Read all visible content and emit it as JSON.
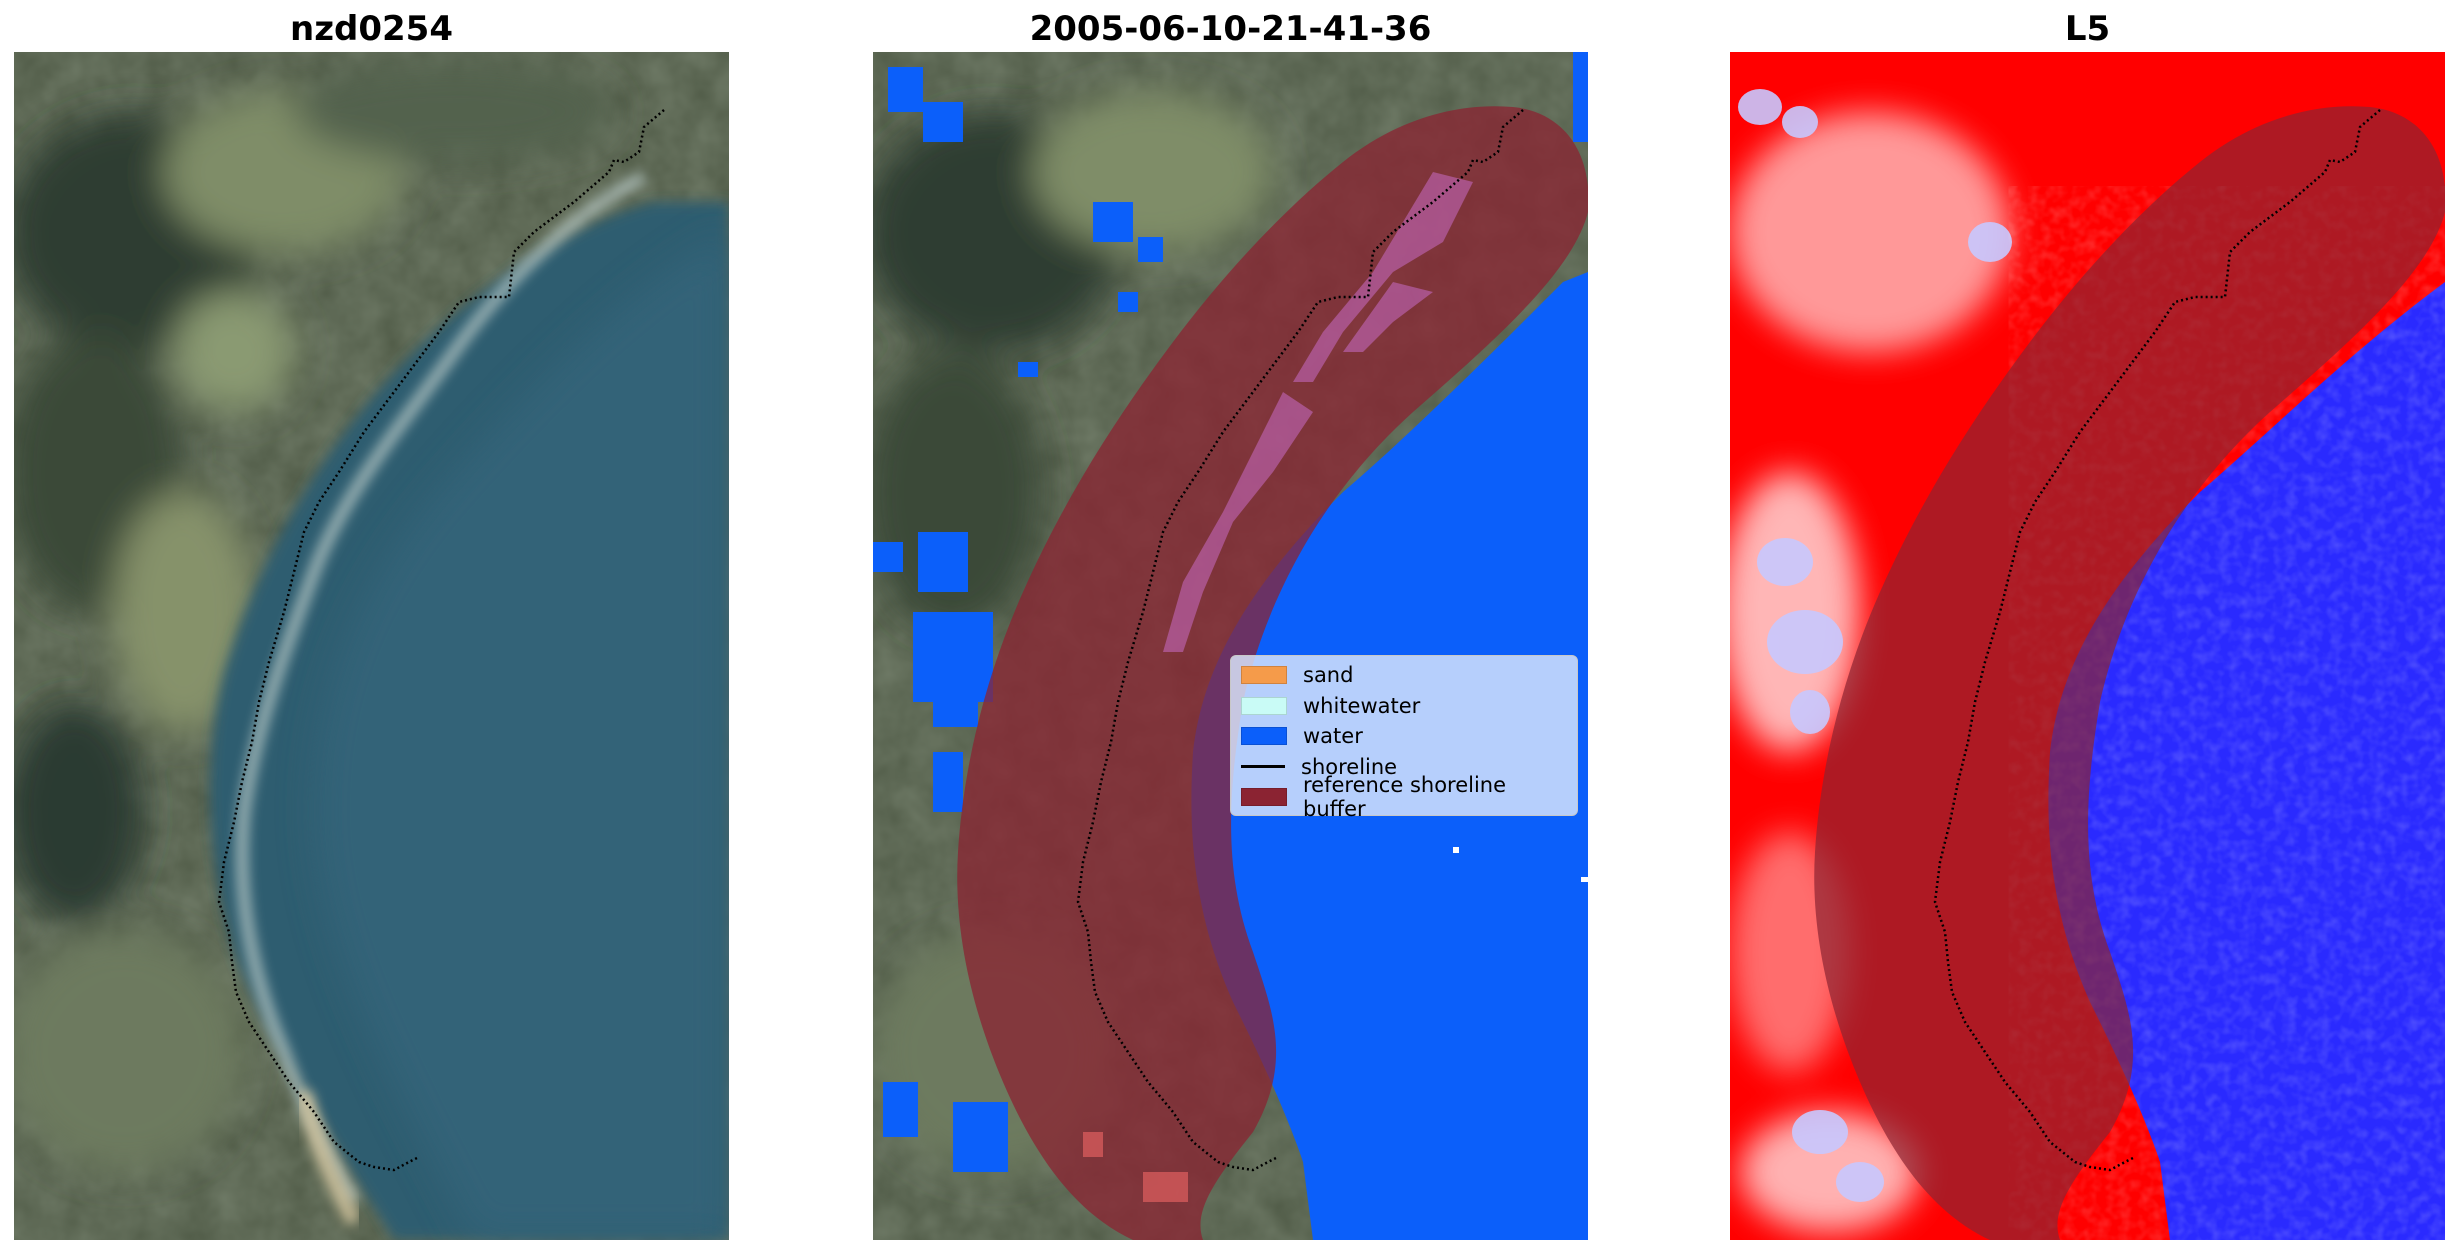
{
  "panels": [
    {
      "title": "nzd0254",
      "kind": "rgb-satellite"
    },
    {
      "title": "2005-06-10-21-41-36",
      "kind": "classification-overlay"
    },
    {
      "title": "L5",
      "kind": "index-colormap"
    }
  ],
  "legend": {
    "items": [
      {
        "label": "sand",
        "color": "#f59b4a",
        "kind": "patch"
      },
      {
        "label": "whitewater",
        "color": "#c9fbf6",
        "kind": "patch"
      },
      {
        "label": "water",
        "color": "#0b5ffa",
        "kind": "patch"
      },
      {
        "label": "shoreline",
        "color": "#000000",
        "kind": "line"
      },
      {
        "label": "reference shoreline buffer",
        "color": "#8b2332",
        "kind": "patch"
      }
    ]
  },
  "colors": {
    "water_class": "#0b5ffa",
    "buffer": "#8b2332",
    "index_positive": "#ff0000",
    "index_negative": "#2a2aff"
  }
}
